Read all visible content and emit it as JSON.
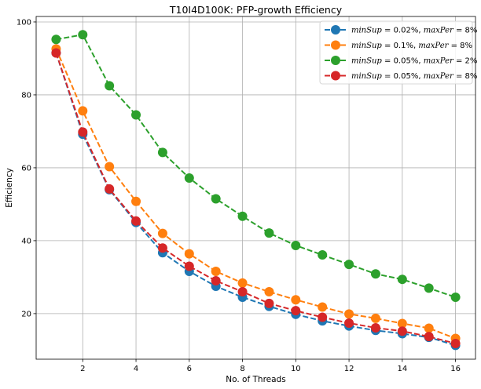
{
  "chart_data": {
    "type": "line",
    "title": "T10I4D100K: PFP-growth Efficiency",
    "xlabel": "No. of Threads",
    "ylabel": "Efficiency",
    "xlim": [
      0.25,
      16.75
    ],
    "ylim": [
      7.5,
      101.5
    ],
    "xticks": [
      2,
      4,
      6,
      8,
      10,
      12,
      14,
      16
    ],
    "yticks": [
      20,
      40,
      60,
      80,
      100
    ],
    "grid": true,
    "legend_position": "top-right",
    "x": [
      1,
      2,
      3,
      4,
      5,
      6,
      7,
      8,
      9,
      10,
      11,
      12,
      13,
      14,
      15,
      16
    ],
    "series": [
      {
        "label_parts": [
          [
            "minSup",
            true
          ],
          [
            " = 0.02%, ",
            false
          ],
          [
            "maxPer",
            true
          ],
          [
            " = 8%",
            false
          ]
        ],
        "color": "#1f77b4",
        "values": [
          91.5,
          69.2,
          54.0,
          45.0,
          36.7,
          31.6,
          27.5,
          24.5,
          22.0,
          19.8,
          18.0,
          16.6,
          15.4,
          14.5,
          13.5,
          11.3
        ]
      },
      {
        "label_parts": [
          [
            "minSup",
            true
          ],
          [
            " = 0.1%, ",
            false
          ],
          [
            "maxPer",
            true
          ],
          [
            " = 8%",
            false
          ]
        ],
        "color": "#ff7f0e",
        "values": [
          92.6,
          75.6,
          60.3,
          50.8,
          42.0,
          36.4,
          31.6,
          28.4,
          26.0,
          23.8,
          21.8,
          19.9,
          18.7,
          17.3,
          16.0,
          13.2
        ]
      },
      {
        "label_parts": [
          [
            "minSup",
            true
          ],
          [
            " = 0.05%, ",
            false
          ],
          [
            "maxPer",
            true
          ],
          [
            " = 2%",
            false
          ]
        ],
        "color": "#2ca02c",
        "values": [
          95.2,
          96.5,
          82.5,
          74.5,
          64.2,
          57.2,
          51.5,
          46.7,
          42.1,
          38.7,
          36.1,
          33.5,
          30.9,
          29.4,
          27.0,
          24.5
        ]
      },
      {
        "label_parts": [
          [
            "minSup",
            true
          ],
          [
            " = 0.05%, ",
            false
          ],
          [
            "maxPer",
            true
          ],
          [
            " = 8%",
            false
          ]
        ],
        "color": "#d62728",
        "values": [
          91.5,
          69.8,
          54.2,
          45.4,
          38.0,
          33.0,
          29.0,
          26.0,
          22.8,
          20.8,
          19.0,
          17.4,
          16.1,
          15.2,
          13.7,
          11.8
        ]
      }
    ]
  }
}
